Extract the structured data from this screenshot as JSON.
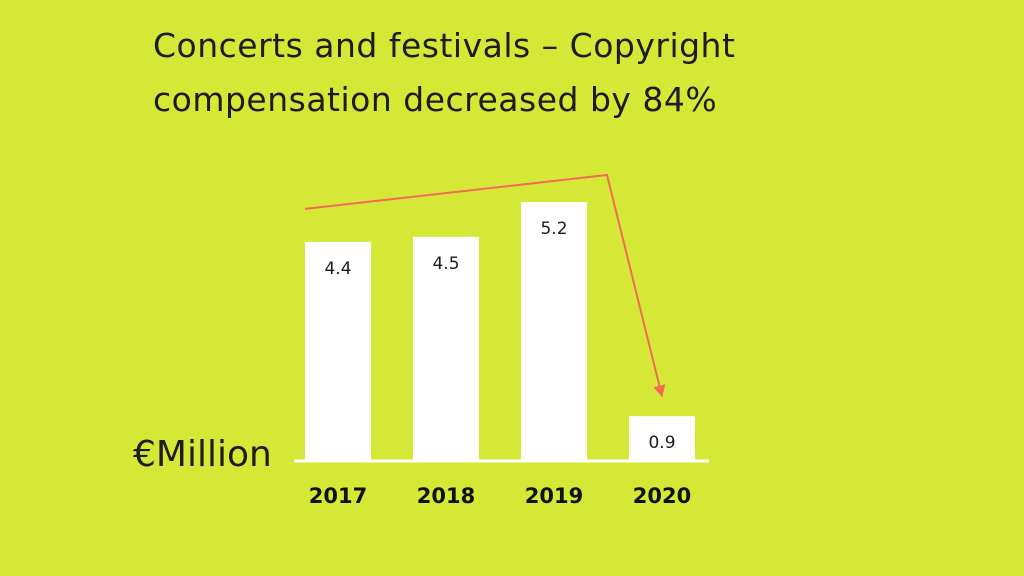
{
  "background_color": "#d5e836",
  "title_lines": [
    "Concerts and festivals – Copyright",
    "compensation decreased by 84%"
  ],
  "chart_data": {
    "type": "bar",
    "title": "Concerts and festivals – Copyright compensation decreased by 84%",
    "categories": [
      "2017",
      "2018",
      "2019",
      "2020"
    ],
    "values": [
      4.4,
      4.5,
      5.2,
      0.9
    ],
    "data_labels": [
      "4.4",
      "4.5",
      "5.2",
      "0.9"
    ],
    "unit_label": "€Million",
    "ylim": [
      0,
      5.2
    ],
    "grid": false,
    "legend": "none",
    "bar_color": "#ffffff",
    "baseline_color": "#ffffff",
    "arrow_color": "#f26b52",
    "arrow_annotation": "decrease from 2019 to 2020"
  }
}
